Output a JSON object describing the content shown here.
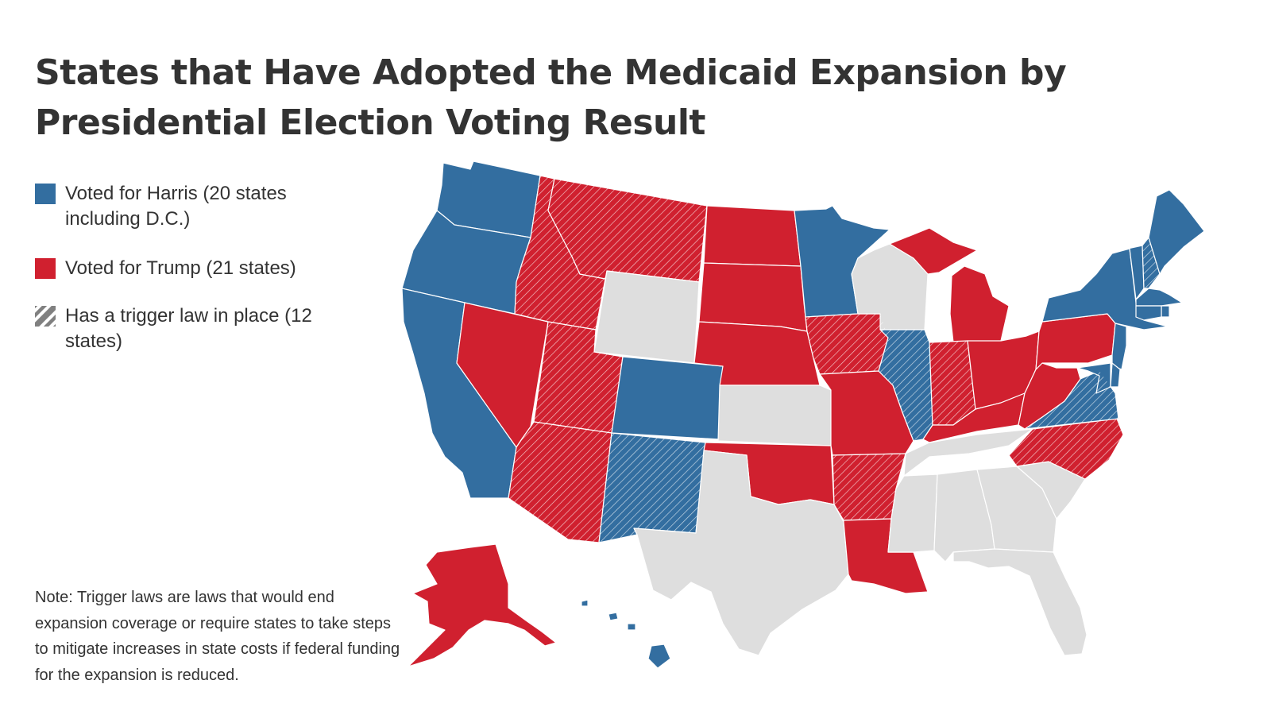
{
  "title": "States that Have Adopted the Medicaid Expansion by Presidential Election Voting Result",
  "legend": {
    "harris": "Voted for Harris (20 states including D.C.)",
    "trump": "Voted for Trump (21 states)",
    "trigger": "Has a trigger law in place (12 states)"
  },
  "note": "Note: Trigger laws are laws that would end expansion coverage or require states to take steps to mitigate increases in state costs if federal funding for the expansion is reduced.",
  "colors": {
    "harris": "#336ea0",
    "trump": "#d0202f",
    "not_adopted": "#dedede",
    "trigger_stripe": "#ffffff",
    "legend_trigger": "#808080",
    "text": "#333333"
  },
  "map_legend_groups": [
    "harris",
    "trump",
    "trigger",
    "not_adopted"
  ],
  "states": {
    "WA": {
      "group": "harris",
      "trigger": false
    },
    "OR": {
      "group": "harris",
      "trigger": false
    },
    "CA": {
      "group": "harris",
      "trigger": false
    },
    "NV": {
      "group": "trump",
      "trigger": false
    },
    "ID": {
      "group": "trump",
      "trigger": true
    },
    "MT": {
      "group": "trump",
      "trigger": true
    },
    "WY": {
      "group": "not_adopted",
      "trigger": false
    },
    "UT": {
      "group": "trump",
      "trigger": true
    },
    "AZ": {
      "group": "trump",
      "trigger": true
    },
    "CO": {
      "group": "harris",
      "trigger": false
    },
    "NM": {
      "group": "harris",
      "trigger": true
    },
    "ND": {
      "group": "trump",
      "trigger": false
    },
    "SD": {
      "group": "trump",
      "trigger": false
    },
    "NE": {
      "group": "trump",
      "trigger": false
    },
    "KS": {
      "group": "not_adopted",
      "trigger": false
    },
    "OK": {
      "group": "trump",
      "trigger": false
    },
    "TX": {
      "group": "not_adopted",
      "trigger": false
    },
    "MN": {
      "group": "harris",
      "trigger": false
    },
    "IA": {
      "group": "trump",
      "trigger": true
    },
    "MO": {
      "group": "trump",
      "trigger": false
    },
    "AR": {
      "group": "trump",
      "trigger": true
    },
    "LA": {
      "group": "trump",
      "trigger": false
    },
    "WI": {
      "group": "not_adopted",
      "trigger": false
    },
    "IL": {
      "group": "harris",
      "trigger": true
    },
    "MI": {
      "group": "trump",
      "trigger": false
    },
    "IN": {
      "group": "trump",
      "trigger": true
    },
    "OH": {
      "group": "trump",
      "trigger": false
    },
    "KY": {
      "group": "trump",
      "trigger": false
    },
    "TN": {
      "group": "not_adopted",
      "trigger": false
    },
    "MS": {
      "group": "not_adopted",
      "trigger": false
    },
    "AL": {
      "group": "not_adopted",
      "trigger": false
    },
    "GA": {
      "group": "not_adopted",
      "trigger": false
    },
    "FL": {
      "group": "not_adopted",
      "trigger": false
    },
    "SC": {
      "group": "not_adopted",
      "trigger": false
    },
    "NC": {
      "group": "trump",
      "trigger": true
    },
    "VA": {
      "group": "harris",
      "trigger": true
    },
    "WV": {
      "group": "trump",
      "trigger": false
    },
    "PA": {
      "group": "trump",
      "trigger": false
    },
    "NY": {
      "group": "harris",
      "trigger": false
    },
    "VT": {
      "group": "harris",
      "trigger": false
    },
    "NH": {
      "group": "harris",
      "trigger": true
    },
    "ME": {
      "group": "harris",
      "trigger": false
    },
    "MA": {
      "group": "harris",
      "trigger": false
    },
    "RI": {
      "group": "harris",
      "trigger": false
    },
    "CT": {
      "group": "harris",
      "trigger": false
    },
    "NJ": {
      "group": "harris",
      "trigger": false
    },
    "DE": {
      "group": "harris",
      "trigger": false
    },
    "MD": {
      "group": "harris",
      "trigger": false
    },
    "AK": {
      "group": "trump",
      "trigger": false
    },
    "HI": {
      "group": "harris",
      "trigger": false
    }
  }
}
